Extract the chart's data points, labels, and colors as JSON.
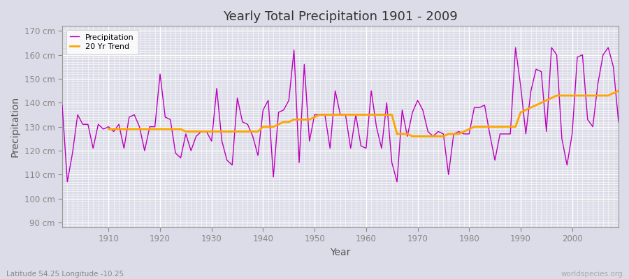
{
  "title": "Yearly Total Precipitation 1901 - 2009",
  "xlabel": "Year",
  "ylabel": "Precipitation",
  "lat_lon_label": "Latitude 54.25 Longitude -10.25",
  "watermark": "worldspecies.org",
  "line_color": "#BB00BB",
  "trend_color": "#FFA500",
  "bg_color": "#DCDCE8",
  "plot_bg_color": "#DCDCE8",
  "ylim": [
    88,
    172
  ],
  "yticks": [
    90,
    100,
    110,
    120,
    130,
    140,
    150,
    160,
    170
  ],
  "xlim": [
    1901,
    2009
  ],
  "years": [
    1901,
    1902,
    1903,
    1904,
    1905,
    1906,
    1907,
    1908,
    1909,
    1910,
    1911,
    1912,
    1913,
    1914,
    1915,
    1916,
    1917,
    1918,
    1919,
    1920,
    1921,
    1922,
    1923,
    1924,
    1925,
    1926,
    1927,
    1928,
    1929,
    1930,
    1931,
    1932,
    1933,
    1934,
    1935,
    1936,
    1937,
    1938,
    1939,
    1940,
    1941,
    1942,
    1943,
    1944,
    1945,
    1946,
    1947,
    1948,
    1949,
    1950,
    1951,
    1952,
    1953,
    1954,
    1955,
    1956,
    1957,
    1958,
    1959,
    1960,
    1961,
    1962,
    1963,
    1964,
    1965,
    1966,
    1967,
    1968,
    1969,
    1970,
    1971,
    1972,
    1973,
    1974,
    1975,
    1976,
    1977,
    1978,
    1979,
    1980,
    1981,
    1982,
    1983,
    1984,
    1985,
    1986,
    1987,
    1988,
    1989,
    1990,
    1991,
    1992,
    1993,
    1994,
    1995,
    1996,
    1997,
    1998,
    1999,
    2000,
    2001,
    2002,
    2003,
    2004,
    2005,
    2006,
    2007,
    2008,
    2009
  ],
  "precip": [
    139,
    107,
    119,
    135,
    131,
    131,
    121,
    131,
    129,
    130,
    128,
    131,
    121,
    134,
    135,
    130,
    120,
    130,
    130,
    152,
    134,
    133,
    119,
    117,
    127,
    120,
    126,
    128,
    128,
    124,
    146,
    124,
    116,
    114,
    142,
    132,
    131,
    126,
    118,
    137,
    141,
    109,
    136,
    137,
    141,
    162,
    115,
    156,
    124,
    135,
    135,
    135,
    121,
    145,
    135,
    135,
    121,
    135,
    122,
    121,
    145,
    130,
    121,
    140,
    115,
    107,
    137,
    126,
    136,
    141,
    137,
    128,
    126,
    128,
    127,
    110,
    127,
    128,
    127,
    127,
    138,
    138,
    139,
    127,
    116,
    127,
    127,
    127,
    163,
    147,
    127,
    145,
    154,
    153,
    128,
    163,
    160,
    125,
    114,
    127,
    159,
    160,
    133,
    130,
    148,
    160,
    163,
    155,
    132
  ],
  "trend_years": [
    1910,
    1911,
    1912,
    1913,
    1914,
    1915,
    1916,
    1917,
    1918,
    1919,
    1920,
    1921,
    1922,
    1923,
    1924,
    1925,
    1926,
    1927,
    1928,
    1929,
    1930,
    1931,
    1932,
    1933,
    1934,
    1935,
    1936,
    1937,
    1938,
    1939,
    1940,
    1941,
    1942,
    1943,
    1944,
    1945,
    1946,
    1947,
    1948,
    1949,
    1950,
    1951,
    1952,
    1953,
    1954,
    1955,
    1956,
    1957,
    1958,
    1959,
    1960,
    1961,
    1962,
    1963,
    1964,
    1965,
    1966,
    1967,
    1968,
    1969,
    1970,
    1971,
    1972,
    1973,
    1974,
    1975,
    1976,
    1977,
    1978,
    1979,
    1980,
    1981,
    1982,
    1983,
    1984,
    1985,
    1986,
    1987,
    1988,
    1989,
    1990,
    1991,
    1992,
    1993,
    1994,
    1995,
    1996,
    1997,
    1998,
    1999,
    2000,
    2001,
    2002,
    2003,
    2004,
    2005,
    2006,
    2007,
    2008,
    2009
  ],
  "trend": [
    129,
    129,
    129,
    129,
    129,
    129,
    129,
    129,
    129,
    129,
    129,
    129,
    129,
    129,
    129,
    128,
    128,
    128,
    128,
    128,
    128,
    128,
    128,
    128,
    128,
    128,
    128,
    128,
    128,
    128,
    130,
    130,
    130,
    131,
    132,
    132,
    133,
    133,
    133,
    133,
    134,
    135,
    135,
    135,
    135,
    135,
    135,
    135,
    135,
    135,
    135,
    135,
    135,
    135,
    135,
    135,
    127,
    127,
    127,
    126,
    126,
    126,
    126,
    126,
    126,
    126,
    127,
    127,
    127,
    128,
    129,
    130,
    130,
    130,
    130,
    130,
    130,
    130,
    130,
    130,
    136,
    137,
    138,
    139,
    140,
    141,
    142,
    143,
    143,
    143,
    143,
    143,
    143,
    143,
    143,
    143,
    143,
    143,
    144,
    145
  ]
}
